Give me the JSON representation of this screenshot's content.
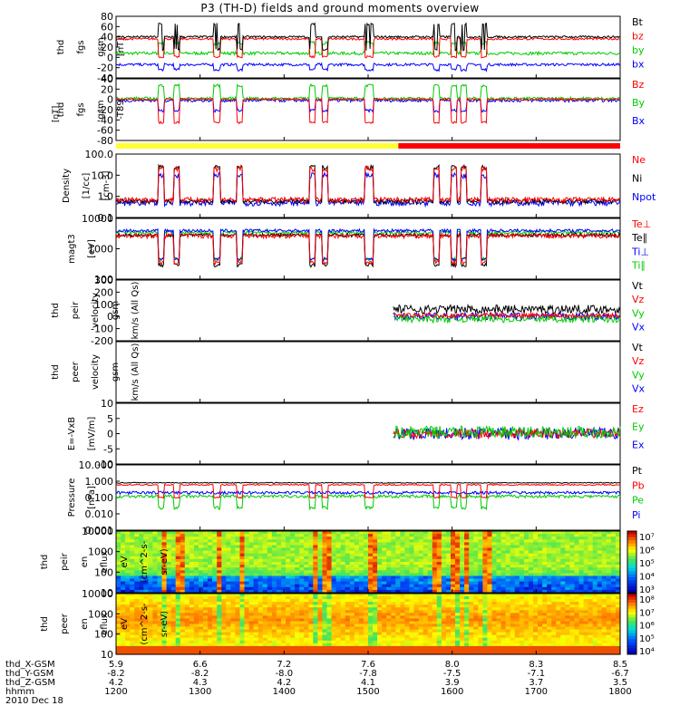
{
  "title": "P3 (TH-D) fields and ground moments overview",
  "colors": {
    "black": "#000000",
    "red": "#ff0000",
    "green": "#00cc00",
    "blue": "#0000ff",
    "lightgreen": "#33dd33",
    "yellow": "#ffff33"
  },
  "time_axis": {
    "hhmm": [
      "1200",
      "1300",
      "1400",
      "1500",
      "1600",
      "1700",
      "1800"
    ],
    "rows": [
      {
        "label": "thd_X-GSM",
        "values": [
          "5.9",
          "6.6",
          "7.2",
          "7.6",
          "8.0",
          "8.3",
          "8.5"
        ]
      },
      {
        "label": "thd_Y-GSM",
        "values": [
          "-8.2",
          "-8.2",
          "-8.0",
          "-7.8",
          "-7.5",
          "-7.1",
          "-6.7"
        ]
      },
      {
        "label": "thd_Z-GSM",
        "values": [
          "4.2",
          "4.3",
          "4.2",
          "4.1",
          "3.9",
          "3.7",
          "3.5"
        ]
      }
    ],
    "hhmm_label": "hhmm",
    "date": "2010 Dec 18"
  },
  "chart_data": [
    {
      "type": "line",
      "id": "fgs",
      "ylabel": [
        "thd",
        "fgs",
        "gsm",
        "[nT]"
      ],
      "ylim": [
        -40,
        80
      ],
      "ticks": [
        "80",
        "60",
        "40",
        "20",
        "0",
        "-20",
        "-40"
      ],
      "legend": [
        {
          "name": "Bt",
          "color": "#000000"
        },
        {
          "name": "bz",
          "color": "#ff0000"
        },
        {
          "name": "by",
          "color": "#00cc00"
        },
        {
          "name": "bx",
          "color": "#0000ff"
        }
      ]
    },
    {
      "type": "line",
      "id": "fgs_dip",
      "ylabel": [
        "thd",
        "fgs",
        "gsm",
        "-T89"
      ],
      "ylim": [
        -80,
        40
      ],
      "ticks": [
        "40",
        "20",
        "0",
        "-20",
        "-40",
        "-60",
        "-80"
      ],
      "ylabel_extra": "[nT]",
      "legend": [
        {
          "name": "Bz",
          "color": "#ff0000"
        },
        {
          "name": "By",
          "color": "#00cc00"
        },
        {
          "name": "Bx",
          "color": "#0000ff"
        }
      ]
    },
    {
      "type": "line",
      "id": "density",
      "ylabel": [
        "Density",
        "[1/cc]",
        "[cm-3]"
      ],
      "log": true,
      "ylim": [
        0.1,
        100
      ],
      "ticks": [
        "100.0",
        "10.0",
        "1.0",
        "0.1"
      ],
      "legend": [
        {
          "name": "Ne",
          "color": "#ff0000"
        },
        {
          "name": "Ni",
          "color": "#000000"
        },
        {
          "name": "Npot",
          "color": "#0000ff"
        }
      ]
    },
    {
      "type": "line",
      "id": "temp",
      "ylabel": [
        "magt3",
        "[eV]"
      ],
      "log": true,
      "ylim": [
        10,
        10000
      ],
      "ticks": [
        "10000",
        "1000",
        "100"
      ],
      "legend": [
        {
          "name": "Te⊥",
          "color": "#ff0000"
        },
        {
          "name": "Te∥",
          "color": "#000000"
        },
        {
          "name": "Ti⊥",
          "color": "#0000ff"
        },
        {
          "name": "Ti∥",
          "color": "#00cc00"
        }
      ]
    },
    {
      "type": "line",
      "id": "vi",
      "ylabel": [
        "thd",
        "peir",
        "velocity",
        "gsm",
        "[km/s (All Qs)]"
      ],
      "ylim": [
        -200,
        300
      ],
      "ticks": [
        "300",
        "200",
        "100",
        "0",
        "-100",
        "-200"
      ],
      "legend": [
        {
          "name": "Vt",
          "color": "#000000"
        },
        {
          "name": "Vz",
          "color": "#ff0000"
        },
        {
          "name": "Vy",
          "color": "#00cc00"
        },
        {
          "name": "Vx",
          "color": "#0000ff"
        }
      ]
    },
    {
      "type": "line",
      "id": "ve",
      "ylabel": [
        "thd",
        "peer",
        "velocity",
        "gsm",
        "[km/s (All Qs)]"
      ],
      "ylim": [
        -200,
        300
      ],
      "ticks": [],
      "legend": [
        {
          "name": "Vt",
          "color": "#000000"
        },
        {
          "name": "Vz",
          "color": "#ff0000"
        },
        {
          "name": "Vy",
          "color": "#00cc00"
        },
        {
          "name": "Vx",
          "color": "#0000ff"
        }
      ]
    },
    {
      "type": "line",
      "id": "efield",
      "ylabel": [
        "E=-VxB",
        "[mV/m]"
      ],
      "ylim": [
        -10,
        10
      ],
      "ticks": [
        "10",
        "5",
        "0",
        "-5",
        "-10"
      ],
      "legend": [
        {
          "name": "Ez",
          "color": "#ff0000"
        },
        {
          "name": "Ey",
          "color": "#00cc00"
        },
        {
          "name": "Ex",
          "color": "#0000ff"
        }
      ]
    },
    {
      "type": "line",
      "id": "pressure",
      "ylabel": [
        "Pressure",
        "[nPa]"
      ],
      "log": true,
      "ylim": [
        0.001,
        10
      ],
      "ticks": [
        "10.000",
        "1.000",
        "0.100",
        "0.010",
        "0.001"
      ],
      "legend": [
        {
          "name": "Pt",
          "color": "#000000"
        },
        {
          "name": "Pb",
          "color": "#ff0000"
        },
        {
          "name": "Pe",
          "color": "#00cc00"
        },
        {
          "name": "Pi",
          "color": "#0000ff"
        }
      ]
    },
    {
      "type": "heatmap",
      "id": "ion_spec",
      "ylabel": [
        "thd",
        "peir",
        "en",
        "eflux",
        "eV",
        "(cm^2-s-",
        "sr-eV)"
      ],
      "ylim": [
        10,
        10000
      ],
      "ticks": [
        "10000",
        "1000",
        "100",
        "10"
      ],
      "colorbar": [
        "10⁷",
        "10⁶",
        "10⁵",
        "10⁴",
        "10³"
      ]
    },
    {
      "type": "heatmap",
      "id": "ele_spec",
      "ylabel": [
        "thd",
        "peer",
        "en",
        "eflux",
        "eV",
        "(cm^2-s-",
        "sr-eV)"
      ],
      "ylim": [
        10,
        10000
      ],
      "ticks": [
        "10000",
        "1000",
        "100",
        "10"
      ],
      "colorbar": [
        "10⁸",
        "10⁷",
        "10⁶",
        "10⁵",
        "10⁴"
      ]
    }
  ]
}
